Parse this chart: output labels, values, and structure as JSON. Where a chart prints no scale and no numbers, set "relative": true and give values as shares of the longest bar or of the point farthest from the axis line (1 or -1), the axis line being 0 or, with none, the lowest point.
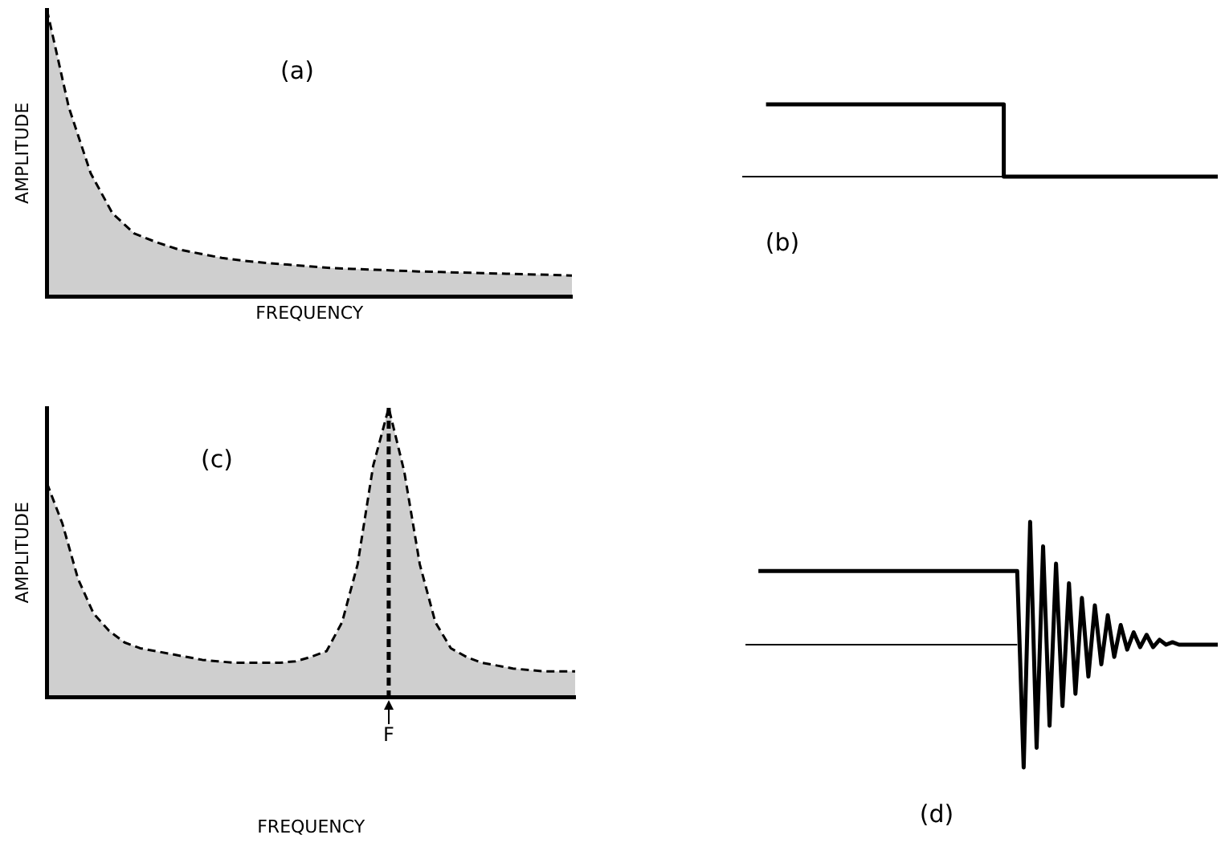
{
  "chart_data": [
    {
      "type": "area",
      "title": "(a)",
      "xlabel": "FREQUENCY",
      "ylabel": "AMPLITUDE",
      "relative": true,
      "tick_labels": false,
      "marker": "none",
      "line_style": "dashed",
      "categories": [
        null,
        null,
        null,
        null,
        null,
        null,
        null,
        null,
        null,
        null,
        null,
        null,
        null,
        null,
        null,
        null,
        null,
        null,
        null,
        null,
        null,
        null,
        null,
        null,
        null
      ],
      "series": [
        {
          "color": "#000000",
          "values": [
            1,
            0.66,
            0.43,
            0.29,
            0.22,
            0.19,
            0.165,
            0.15,
            0.135,
            0.125,
            0.118,
            0.112,
            0.106,
            0.1,
            0.097,
            0.094,
            0.091,
            0.088,
            0.086,
            0.084,
            0.082,
            0.08,
            0.078,
            0.076,
            0.074
          ]
        }
      ]
    },
    {
      "type": "step",
      "title": "(b)",
      "relative": true,
      "tick_labels": false,
      "marker": "none",
      "categories": [
        null,
        null,
        null,
        null,
        null,
        null,
        null,
        null,
        null,
        null,
        null,
        null,
        null,
        null,
        null,
        null,
        null,
        null,
        null,
        null,
        null
      ],
      "series": [
        {
          "color": "#000000",
          "values": [
            null,
            1,
            1,
            1,
            1,
            1,
            1,
            1,
            1,
            1,
            1,
            1,
            0,
            0,
            0,
            0,
            0,
            0,
            0,
            0,
            0
          ]
        },
        {
          "type": "line",
          "color": "#000000",
          "values": [
            0,
            0,
            0,
            0,
            0,
            0,
            0,
            0,
            0,
            0,
            0,
            0,
            0,
            null,
            null,
            null,
            null,
            null,
            null,
            null,
            null
          ]
        }
      ]
    },
    {
      "type": "area",
      "title": "(c)",
      "xlabel": "FREQUENCY",
      "ylabel": "AMPLITUDE",
      "relative": true,
      "tick_labels": "x",
      "marker": "none",
      "line_style": "dashed",
      "categories": [
        null,
        null,
        null,
        null,
        null,
        null,
        null,
        null,
        null,
        null,
        null,
        null,
        null,
        null,
        null,
        null,
        null,
        null,
        null,
        null,
        null,
        null,
        null,
        null,
        null,
        null,
        null,
        null,
        null,
        null,
        null,
        null,
        null,
        null,
        null
      ],
      "series": [
        {
          "color": "#000000",
          "values": [
            0.74,
            0.6,
            0.41,
            0.29,
            0.23,
            0.19,
            0.17,
            0.16,
            0.15,
            0.14,
            0.13,
            0.125,
            0.12,
            0.12,
            0.12,
            0.12,
            0.125,
            0.14,
            0.16,
            0.26,
            0.46,
            0.8,
            1,
            0.78,
            0.46,
            0.26,
            0.17,
            0.14,
            0.12,
            0.11,
            0.1,
            0.095,
            0.09,
            0.09,
            0.09
          ]
        }
      ],
      "annotations": [
        "F"
      ]
    },
    {
      "type": "line",
      "title": "(d)",
      "relative": true,
      "tick_labels": false,
      "marker": "none",
      "categories": [
        null,
        null,
        null,
        null,
        null,
        null,
        null,
        null,
        null,
        null,
        null,
        null,
        null,
        null,
        null,
        null,
        null,
        null,
        null,
        null,
        null,
        null,
        null,
        null,
        null,
        null,
        null,
        null,
        null,
        null,
        null,
        null,
        null,
        null,
        null,
        null,
        null,
        null,
        null,
        null,
        null,
        null,
        null,
        null,
        null,
        null,
        null,
        null,
        null,
        null,
        null,
        null,
        null,
        null,
        null,
        null,
        null,
        null,
        null,
        null,
        null,
        null,
        null,
        null,
        null,
        null,
        null,
        null,
        null,
        null,
        null,
        null,
        null,
        null
      ],
      "series": [
        {
          "color": "#000000",
          "values": [
            null,
            null,
            0.8,
            0.8,
            0.8,
            0.8,
            0.8,
            0.8,
            0.8,
            0.8,
            0.8,
            0.8,
            0.8,
            0.8,
            0.8,
            0.8,
            0.8,
            0.8,
            0.8,
            0.8,
            0.8,
            0.8,
            0.8,
            0.8,
            0.8,
            0.8,
            0.8,
            0.8,
            0.8,
            0.8,
            0.8,
            0.8,
            0.8,
            0.8,
            0.8,
            0.8,
            0.8,
            0.8,
            0.8,
            0.8,
            0.8,
            0.8,
            0.8,
            0,
            1,
            0.08,
            0.9,
            0.17,
            0.83,
            0.25,
            0.75,
            0.3,
            0.69,
            0.37,
            0.66,
            0.42,
            0.62,
            0.45,
            0.58,
            0.48,
            0.55,
            0.49,
            0.54,
            0.49,
            0.52,
            0.5,
            0.51,
            0.5,
            0.5,
            0.5,
            0.5,
            0.5,
            0.5,
            0.5
          ]
        },
        {
          "color": "#000000",
          "values": [
            0.5,
            0.5,
            0.5,
            0.5,
            0.5,
            0.5,
            0.5,
            0.5,
            0.5,
            0.5,
            0.5,
            0.5,
            0.5,
            0.5,
            0.5,
            0.5,
            0.5,
            0.5,
            0.5,
            0.5,
            0.5,
            0.5,
            0.5,
            0.5,
            0.5,
            0.5,
            0.5,
            0.5,
            0.5,
            0.5,
            0.5,
            0.5,
            0.5,
            0.5,
            0.5,
            0.5,
            0.5,
            0.5,
            0.5,
            0.5,
            0.5,
            0.5,
            0.5,
            null,
            null,
            null,
            null,
            null,
            null,
            null,
            null,
            null,
            null,
            null,
            null,
            null,
            null,
            null,
            null,
            null,
            null,
            null,
            null,
            null,
            null,
            null,
            null,
            null,
            null,
            null,
            null,
            null,
            null,
            null
          ]
        }
      ]
    }
  ]
}
